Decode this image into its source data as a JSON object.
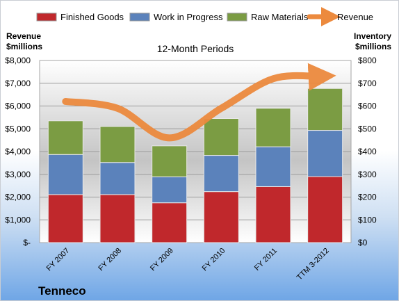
{
  "company": "Tenneco",
  "chart_data": {
    "type": "bar",
    "stacked": true,
    "title": "12-Month Periods",
    "categories": [
      "FY 2007",
      "FY 2008",
      "FY 2009",
      "FY 2010",
      "FY 2011",
      "TTM 3-2012"
    ],
    "series": [
      {
        "name": "Finished Goods",
        "axis": "right",
        "color": "#c0282c",
        "values": [
          211,
          211,
          175,
          224,
          246,
          290
        ]
      },
      {
        "name": "Work in Progress",
        "axis": "right",
        "color": "#5b82bb",
        "values": [
          176,
          141,
          114,
          159,
          175,
          203
        ]
      },
      {
        "name": "Raw Materials",
        "axis": "right",
        "color": "#7b9c43",
        "values": [
          148,
          158,
          136,
          162,
          169,
          184
        ]
      },
      {
        "name": "Revenue",
        "axis": "left",
        "type": "line",
        "color": "#ec8a3e",
        "values": [
          6200,
          5900,
          4600,
          5900,
          7200,
          7300
        ]
      }
    ],
    "left_axis": {
      "label_lines": [
        "Revenue",
        "$millions"
      ],
      "ylim": [
        0,
        8000
      ],
      "tick_labels": [
        "$-",
        "$1,000",
        "$2,000",
        "$3,000",
        "$4,000",
        "$5,000",
        "$6,000",
        "$7,000",
        "$8,000"
      ]
    },
    "right_axis": {
      "label_lines": [
        "Inventory",
        "$millions"
      ],
      "ylim": [
        0,
        800
      ],
      "tick_labels": [
        "$0",
        "$100",
        "$200",
        "$300",
        "$400",
        "$500",
        "$600",
        "$700",
        "$800"
      ]
    },
    "legend_position": "top",
    "grid": true
  }
}
